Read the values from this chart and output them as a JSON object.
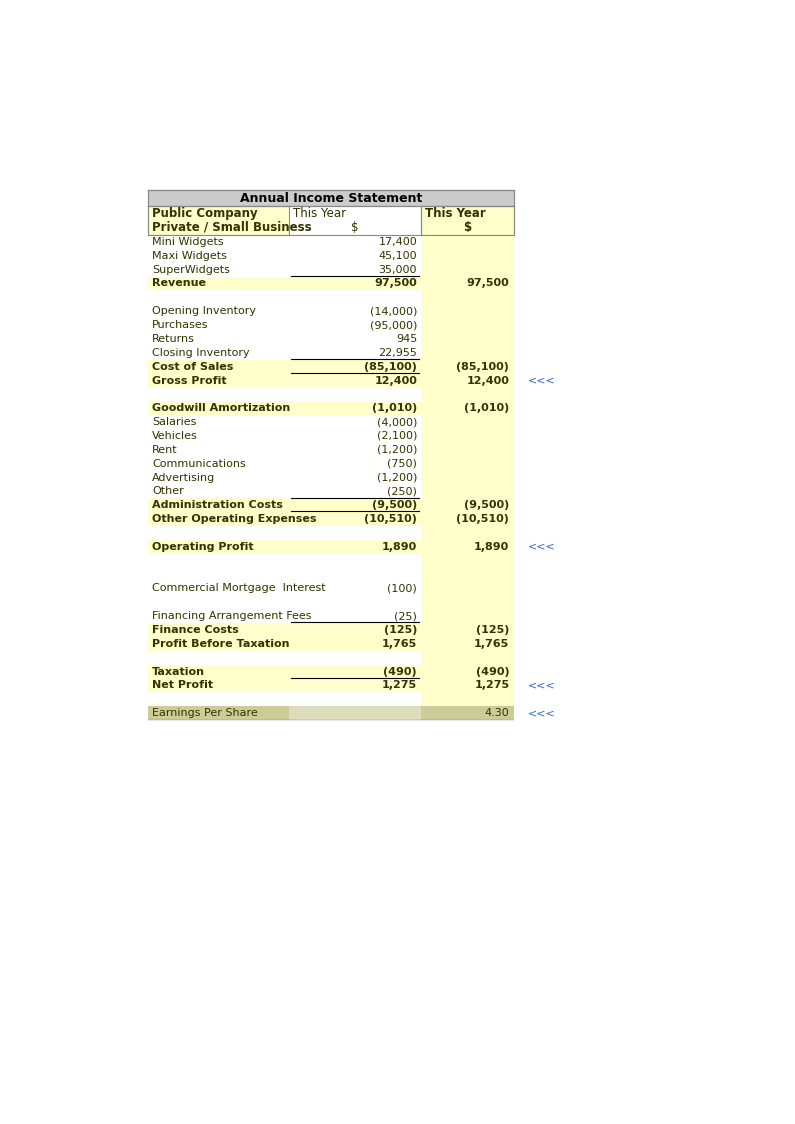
{
  "title": "Annual Income Statement",
  "yellow": "#FFFFCC",
  "green": "#CCCC99",
  "green_mid": "#DDDDBB",
  "border_color": "#888888",
  "text_color": "#333300",
  "marker_color": "#3366CC",
  "title_bg": "#CCCCCC",
  "rows": [
    {
      "label": "Mini Widgets",
      "col2": "17,400",
      "col3": "",
      "bold": false,
      "yellow": false,
      "line_below_col2": false,
      "green": false,
      "marker": ""
    },
    {
      "label": "Maxi Widgets",
      "col2": "45,100",
      "col3": "",
      "bold": false,
      "yellow": false,
      "line_below_col2": false,
      "green": false,
      "marker": ""
    },
    {
      "label": "SuperWidgets",
      "col2": "35,000",
      "col3": "",
      "bold": false,
      "yellow": false,
      "line_below_col2": true,
      "green": false,
      "marker": ""
    },
    {
      "label": "Revenue",
      "col2": "97,500",
      "col3": "97,500",
      "bold": true,
      "yellow": true,
      "line_below_col2": false,
      "green": false,
      "marker": ""
    },
    {
      "label": "",
      "col2": "",
      "col3": "",
      "bold": false,
      "yellow": false,
      "line_below_col2": false,
      "green": false,
      "marker": ""
    },
    {
      "label": "Opening Inventory",
      "col2": "(14,000)",
      "col3": "",
      "bold": false,
      "yellow": false,
      "line_below_col2": false,
      "green": false,
      "marker": ""
    },
    {
      "label": "Purchases",
      "col2": "(95,000)",
      "col3": "",
      "bold": false,
      "yellow": false,
      "line_below_col2": false,
      "green": false,
      "marker": ""
    },
    {
      "label": "Returns",
      "col2": "945",
      "col3": "",
      "bold": false,
      "yellow": false,
      "line_below_col2": false,
      "green": false,
      "marker": ""
    },
    {
      "label": "Closing Inventory",
      "col2": "22,955",
      "col3": "",
      "bold": false,
      "yellow": false,
      "line_below_col2": true,
      "green": false,
      "marker": ""
    },
    {
      "label": "Cost of Sales",
      "col2": "(85,100)",
      "col3": "(85,100)",
      "bold": true,
      "yellow": true,
      "line_below_col2": true,
      "green": false,
      "marker": ""
    },
    {
      "label": "Gross Profit",
      "col2": "12,400",
      "col3": "12,400",
      "bold": true,
      "yellow": true,
      "line_below_col2": false,
      "green": false,
      "marker": "<<<"
    },
    {
      "label": "",
      "col2": "",
      "col3": "",
      "bold": false,
      "yellow": false,
      "line_below_col2": false,
      "green": false,
      "marker": ""
    },
    {
      "label": "Goodwill Amortization",
      "col2": "(1,010)",
      "col3": "(1,010)",
      "bold": true,
      "yellow": true,
      "line_below_col2": false,
      "green": false,
      "marker": ""
    },
    {
      "label": "Salaries",
      "col2": "(4,000)",
      "col3": "",
      "bold": false,
      "yellow": false,
      "line_below_col2": false,
      "green": false,
      "marker": ""
    },
    {
      "label": "Vehicles",
      "col2": "(2,100)",
      "col3": "",
      "bold": false,
      "yellow": false,
      "line_below_col2": false,
      "green": false,
      "marker": ""
    },
    {
      "label": "Rent",
      "col2": "(1,200)",
      "col3": "",
      "bold": false,
      "yellow": false,
      "line_below_col2": false,
      "green": false,
      "marker": ""
    },
    {
      "label": "Communications",
      "col2": "(750)",
      "col3": "",
      "bold": false,
      "yellow": false,
      "line_below_col2": false,
      "green": false,
      "marker": ""
    },
    {
      "label": "Advertising",
      "col2": "(1,200)",
      "col3": "",
      "bold": false,
      "yellow": false,
      "line_below_col2": false,
      "green": false,
      "marker": ""
    },
    {
      "label": "Other",
      "col2": "(250)",
      "col3": "",
      "bold": false,
      "yellow": false,
      "line_below_col2": true,
      "green": false,
      "marker": ""
    },
    {
      "label": "Administration Costs",
      "col2": "(9,500)",
      "col3": "(9,500)",
      "bold": true,
      "yellow": true,
      "line_below_col2": true,
      "green": false,
      "marker": ""
    },
    {
      "label": "Other Operating Expenses",
      "col2": "(10,510)",
      "col3": "(10,510)",
      "bold": true,
      "yellow": true,
      "line_below_col2": false,
      "green": false,
      "marker": ""
    },
    {
      "label": "",
      "col2": "",
      "col3": "",
      "bold": false,
      "yellow": false,
      "line_below_col2": false,
      "green": false,
      "marker": ""
    },
    {
      "label": "Operating Profit",
      "col2": "1,890",
      "col3": "1,890",
      "bold": true,
      "yellow": true,
      "line_below_col2": false,
      "green": false,
      "marker": "<<<"
    },
    {
      "label": "",
      "col2": "",
      "col3": "",
      "bold": false,
      "yellow": false,
      "line_below_col2": false,
      "green": false,
      "marker": ""
    },
    {
      "label": "",
      "col2": "",
      "col3": "",
      "bold": false,
      "yellow": false,
      "line_below_col2": false,
      "green": false,
      "marker": ""
    },
    {
      "label": "Commercial Mortgage  Interest",
      "col2": "(100)",
      "col3": "",
      "bold": false,
      "yellow": false,
      "line_below_col2": false,
      "green": false,
      "marker": ""
    },
    {
      "label": "",
      "col2": "",
      "col3": "",
      "bold": false,
      "yellow": false,
      "line_below_col2": false,
      "green": false,
      "marker": ""
    },
    {
      "label": "Financing Arrangement Fees",
      "col2": "(25)",
      "col3": "",
      "bold": false,
      "yellow": false,
      "line_below_col2": true,
      "green": false,
      "marker": ""
    },
    {
      "label": "Finance Costs",
      "col2": "(125)",
      "col3": "(125)",
      "bold": true,
      "yellow": true,
      "line_below_col2": false,
      "green": false,
      "marker": ""
    },
    {
      "label": "Profit Before Taxation",
      "col2": "1,765",
      "col3": "1,765",
      "bold": true,
      "yellow": true,
      "line_below_col2": false,
      "green": false,
      "marker": ""
    },
    {
      "label": "",
      "col2": "",
      "col3": "",
      "bold": false,
      "yellow": false,
      "line_below_col2": false,
      "green": false,
      "marker": ""
    },
    {
      "label": "Taxation",
      "col2": "(490)",
      "col3": "(490)",
      "bold": true,
      "yellow": true,
      "line_below_col2": true,
      "green": false,
      "marker": ""
    },
    {
      "label": "Net Profit",
      "col2": "1,275",
      "col3": "1,275",
      "bold": true,
      "yellow": true,
      "line_below_col2": false,
      "green": false,
      "marker": "<<<"
    },
    {
      "label": "",
      "col2": "",
      "col3": "",
      "bold": false,
      "yellow": false,
      "line_below_col2": false,
      "green": false,
      "marker": ""
    },
    {
      "label": "Earnings Per Share",
      "col2": "",
      "col3": "4.30",
      "bold": false,
      "yellow": false,
      "line_below_col2": false,
      "green": true,
      "marker": "<<<"
    }
  ]
}
